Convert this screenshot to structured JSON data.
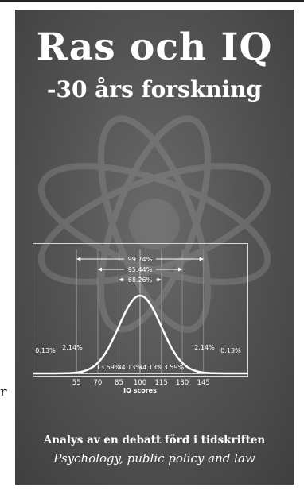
{
  "side_char": "r",
  "cover": {
    "title": "Ras och IQ",
    "subtitle": "-30 års forskning",
    "tagline": "Analys av en debatt förd i tidskriften",
    "journal": "Psychology, public policy and law"
  },
  "chart_data": {
    "type": "area",
    "title": "",
    "xlabel": "IQ scores",
    "ylabel": "",
    "x_ticks": [
      55,
      70,
      85,
      100,
      115,
      130,
      145
    ],
    "mean": 100,
    "sd": 15,
    "segments": [
      "0.13%",
      "2.14%",
      "13.59%",
      "34.13%",
      "34.13%",
      "13.59%",
      "2.14%",
      "0.13%"
    ],
    "ranges": [
      {
        "label": "99.74%",
        "from": 55,
        "to": 145
      },
      {
        "label": "95.44%",
        "from": 70,
        "to": 130
      },
      {
        "label": "68.26%",
        "from": 85,
        "to": 115
      }
    ],
    "grid": false
  },
  "colors": {
    "cover_background": "#555555",
    "text": "#ffffff",
    "curve": "#ffffff"
  }
}
